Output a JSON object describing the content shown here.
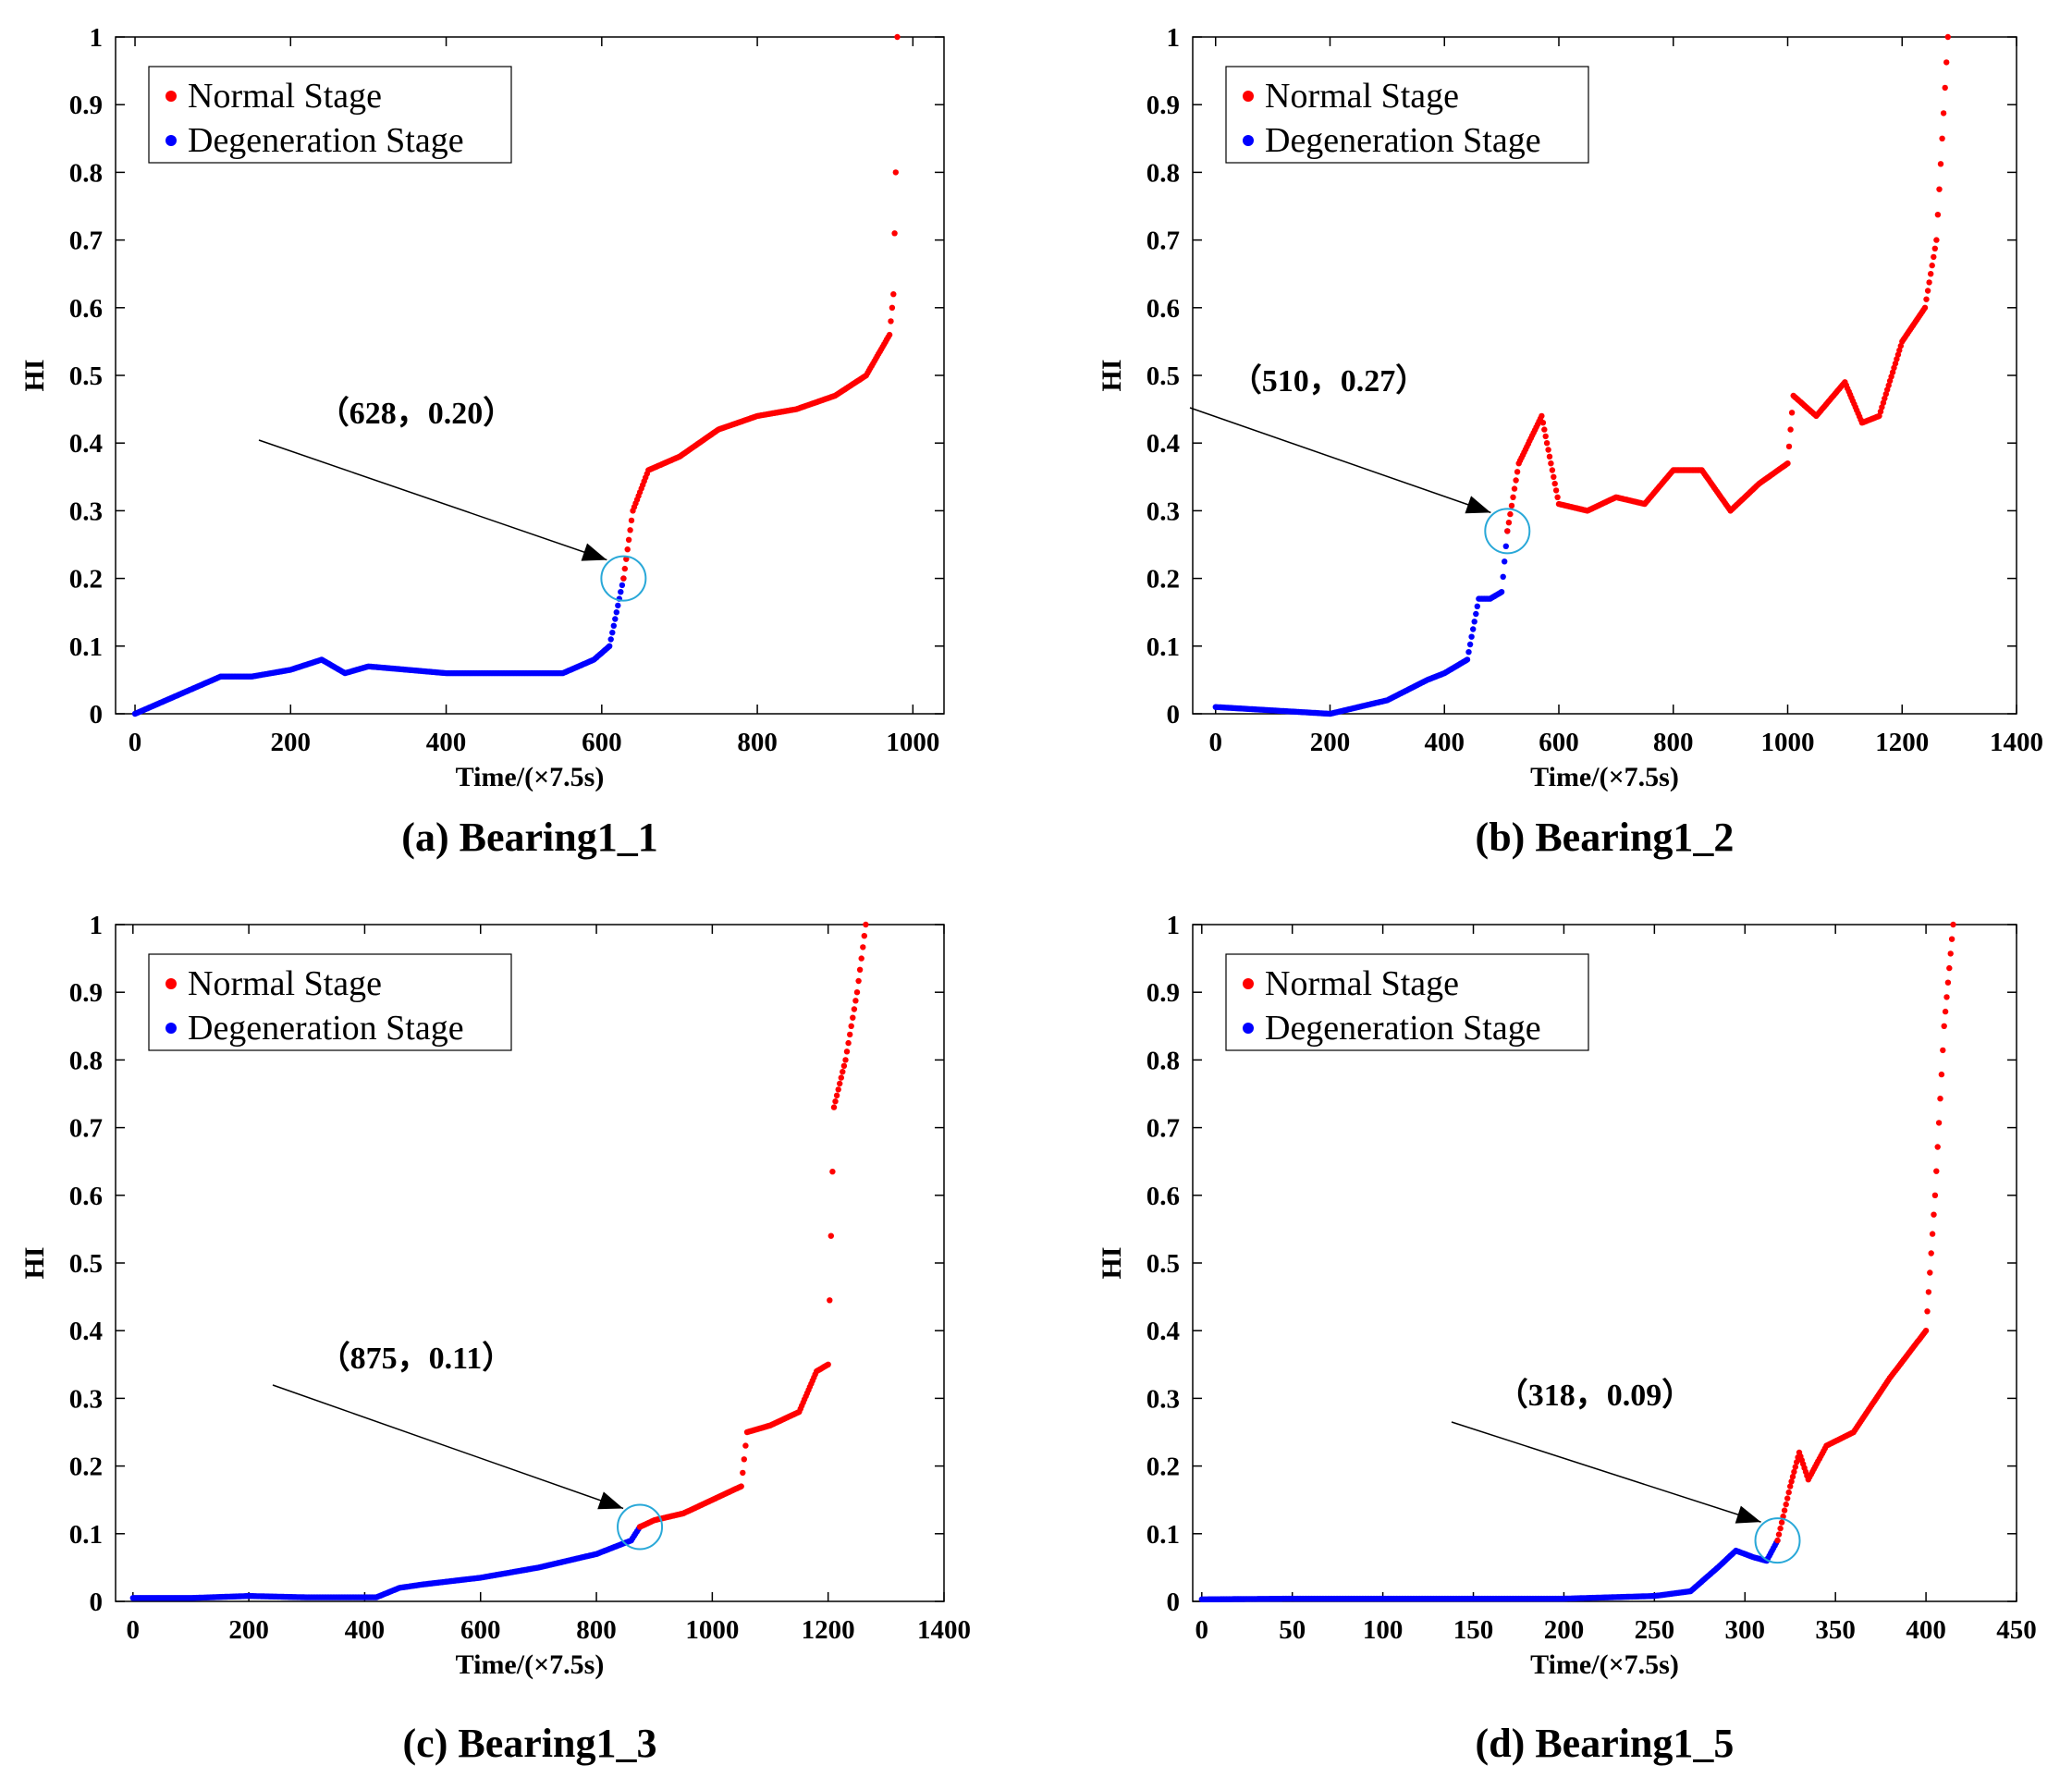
{
  "figure": {
    "colors": {
      "normal": "#ff0000",
      "degeneration": "#0000ff",
      "marker": "#29a8d8",
      "axis": "#000000"
    }
  },
  "chart_data": [
    {
      "type": "scatter",
      "caption": "(a) Bearing1_1",
      "xlabel": "Time/(×7.5s)",
      "ylabel": "HI",
      "xlim": [
        -25,
        1040
      ],
      "ylim": [
        0,
        1
      ],
      "xticks": [
        "0",
        "200",
        "400",
        "600",
        "800",
        "1000"
      ],
      "xtick_values": [
        0,
        200,
        400,
        600,
        800,
        1000
      ],
      "yticks": [
        "0",
        "0.1",
        "0.2",
        "0.3",
        "0.4",
        "0.5",
        "0.6",
        "0.7",
        "0.8",
        "0.9",
        "1"
      ],
      "ytick_values": [
        0,
        0.1,
        0.2,
        0.3,
        0.4,
        0.5,
        0.6,
        0.7,
        0.8,
        0.9,
        1
      ],
      "legend": [
        "Normal Stage",
        "Degeneration Stage"
      ],
      "annotation": {
        "text": "（628，0.20）",
        "x": 628,
        "y": 0.2
      },
      "series": [
        {
          "name": "Degeneration Stage",
          "x": [
            0,
            40,
            80,
            110,
            150,
            200,
            240,
            270,
            300,
            350,
            400,
            450,
            500,
            550,
            590,
            610,
            628
          ],
          "y": [
            0.0,
            0.02,
            0.04,
            0.055,
            0.055,
            0.065,
            0.08,
            0.06,
            0.07,
            0.065,
            0.06,
            0.06,
            0.06,
            0.06,
            0.08,
            0.1,
            0.2
          ]
        },
        {
          "name": "Normal Stage",
          "x": [
            628,
            640,
            660,
            700,
            750,
            800,
            850,
            900,
            940,
            970,
            975,
            978,
            980
          ],
          "y": [
            0.2,
            0.3,
            0.36,
            0.38,
            0.42,
            0.44,
            0.45,
            0.47,
            0.5,
            0.56,
            0.62,
            0.8,
            1.0
          ]
        }
      ]
    },
    {
      "type": "scatter",
      "caption": "(b) Bearing1_2",
      "xlabel": "Time/(×7.5s)",
      "ylabel": "HI",
      "xlim": [
        -40,
        1400
      ],
      "ylim": [
        0,
        1
      ],
      "xticks": [
        "0",
        "200",
        "400",
        "600",
        "800",
        "1000",
        "1200",
        "1400"
      ],
      "xtick_values": [
        0,
        200,
        400,
        600,
        800,
        1000,
        1200,
        1400
      ],
      "yticks": [
        "0",
        "0.1",
        "0.2",
        "0.3",
        "0.4",
        "0.5",
        "0.6",
        "0.7",
        "0.8",
        "0.9",
        "1"
      ],
      "ytick_values": [
        0,
        0.1,
        0.2,
        0.3,
        0.4,
        0.5,
        0.6,
        0.7,
        0.8,
        0.9,
        1
      ],
      "legend": [
        "Normal Stage",
        "Degeneration Stage"
      ],
      "annotation": {
        "text": "（510，0.27）",
        "x": 510,
        "y": 0.27
      },
      "series": [
        {
          "name": "Degeneration Stage",
          "x": [
            0,
            100,
            200,
            300,
            370,
            400,
            440,
            460,
            480,
            500,
            510
          ],
          "y": [
            0.01,
            0.005,
            0.0,
            0.02,
            0.05,
            0.06,
            0.08,
            0.17,
            0.17,
            0.18,
            0.27
          ]
        },
        {
          "name": "Normal Stage",
          "x": [
            510,
            530,
            570,
            600,
            650,
            700,
            750,
            800,
            850,
            900,
            950,
            1000,
            1010,
            1050,
            1100,
            1130,
            1160,
            1200,
            1240,
            1260,
            1280
          ],
          "y": [
            0.27,
            0.37,
            0.44,
            0.31,
            0.3,
            0.32,
            0.31,
            0.36,
            0.36,
            0.3,
            0.34,
            0.37,
            0.47,
            0.44,
            0.49,
            0.43,
            0.44,
            0.55,
            0.6,
            0.7,
            1.0
          ]
        }
      ]
    },
    {
      "type": "scatter",
      "caption": "(c) Bearing1_3",
      "xlabel": "Time/(×7.5s)",
      "ylabel": "HI",
      "xlim": [
        -30,
        1400
      ],
      "ylim": [
        0,
        1
      ],
      "xticks": [
        "0",
        "200",
        "400",
        "600",
        "800",
        "1000",
        "1200",
        "1400"
      ],
      "xtick_values": [
        0,
        200,
        400,
        600,
        800,
        1000,
        1200,
        1400
      ],
      "yticks": [
        "0",
        "0.1",
        "0.2",
        "0.3",
        "0.4",
        "0.5",
        "0.6",
        "0.7",
        "0.8",
        "0.9",
        "1"
      ],
      "ytick_values": [
        0,
        0.1,
        0.2,
        0.3,
        0.4,
        0.5,
        0.6,
        0.7,
        0.8,
        0.9,
        1
      ],
      "legend": [
        "Normal Stage",
        "Degeneration Stage"
      ],
      "annotation": {
        "text": "（875，0.11）",
        "x": 875,
        "y": 0.11
      },
      "series": [
        {
          "name": "Degeneration Stage",
          "x": [
            0,
            100,
            200,
            300,
            420,
            460,
            500,
            600,
            700,
            800,
            860,
            875
          ],
          "y": [
            0.005,
            0.005,
            0.008,
            0.006,
            0.006,
            0.02,
            0.025,
            0.035,
            0.05,
            0.07,
            0.09,
            0.11
          ]
        },
        {
          "name": "Normal Stage",
          "x": [
            875,
            900,
            950,
            1000,
            1050,
            1060,
            1100,
            1150,
            1180,
            1200,
            1210,
            1230,
            1250,
            1265
          ],
          "y": [
            0.11,
            0.12,
            0.13,
            0.15,
            0.17,
            0.25,
            0.26,
            0.28,
            0.34,
            0.35,
            0.73,
            0.8,
            0.9,
            1.0
          ]
        }
      ]
    },
    {
      "type": "scatter",
      "caption": "(d) Bearing1_5",
      "xlabel": "Time/(×7.5s)",
      "ylabel": "HI",
      "xlim": [
        -5,
        450
      ],
      "ylim": [
        0,
        1
      ],
      "xticks": [
        "0",
        "50",
        "100",
        "150",
        "200",
        "250",
        "300",
        "350",
        "400",
        "450"
      ],
      "xtick_values": [
        0,
        50,
        100,
        150,
        200,
        250,
        300,
        350,
        400,
        450
      ],
      "yticks": [
        "0",
        "0.1",
        "0.2",
        "0.3",
        "0.4",
        "0.5",
        "0.6",
        "0.7",
        "0.8",
        "0.9",
        "1"
      ],
      "ytick_values": [
        0,
        0.1,
        0.2,
        0.3,
        0.4,
        0.5,
        0.6,
        0.7,
        0.8,
        0.9,
        1
      ],
      "legend": [
        "Normal Stage",
        "Degeneration Stage"
      ],
      "annotation": {
        "text": "（318，0.09）",
        "x": 318,
        "y": 0.09
      },
      "series": [
        {
          "name": "Degeneration Stage",
          "x": [
            0,
            50,
            100,
            150,
            200,
            250,
            270,
            285,
            295,
            305,
            312,
            318
          ],
          "y": [
            0.003,
            0.004,
            0.004,
            0.004,
            0.004,
            0.008,
            0.015,
            0.05,
            0.075,
            0.065,
            0.06,
            0.09
          ]
        },
        {
          "name": "Normal Stage",
          "x": [
            318,
            325,
            330,
            335,
            345,
            360,
            380,
            400,
            405,
            410,
            415
          ],
          "y": [
            0.09,
            0.17,
            0.22,
            0.18,
            0.23,
            0.25,
            0.33,
            0.4,
            0.6,
            0.85,
            1.0
          ]
        }
      ]
    }
  ]
}
